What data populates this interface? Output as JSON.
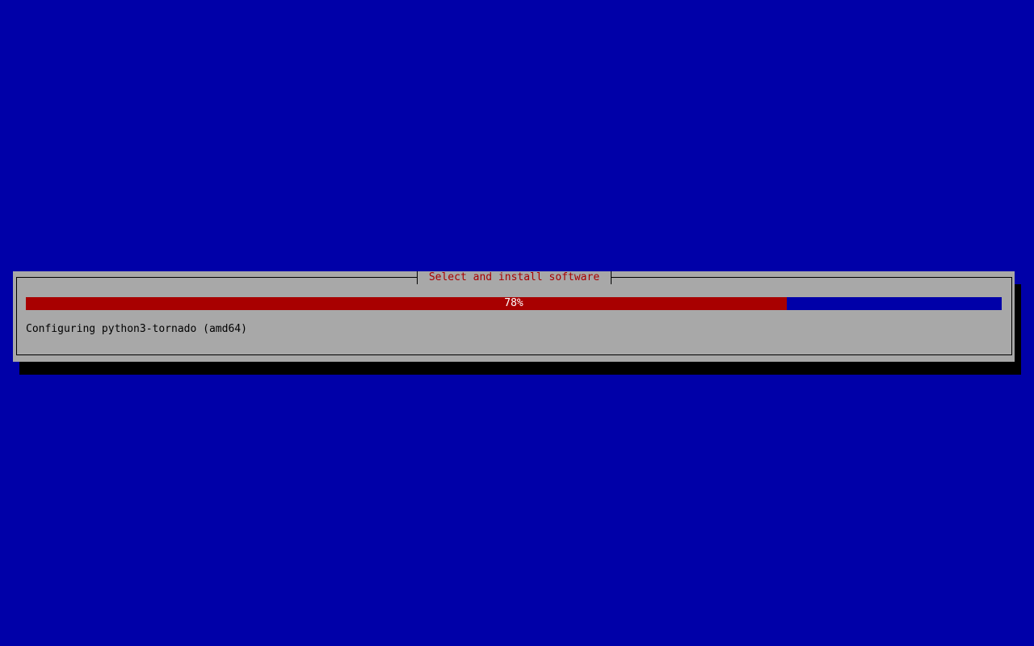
{
  "dialog": {
    "title": "Select and install software",
    "progress": {
      "percent": 78,
      "label": "78%"
    },
    "status": "Configuring python3-tornado (amd64)"
  },
  "colors": {
    "background": "#0000a8",
    "dialog": "#a8a8a8",
    "title": "#a80000",
    "progress_fill": "#a80000"
  }
}
